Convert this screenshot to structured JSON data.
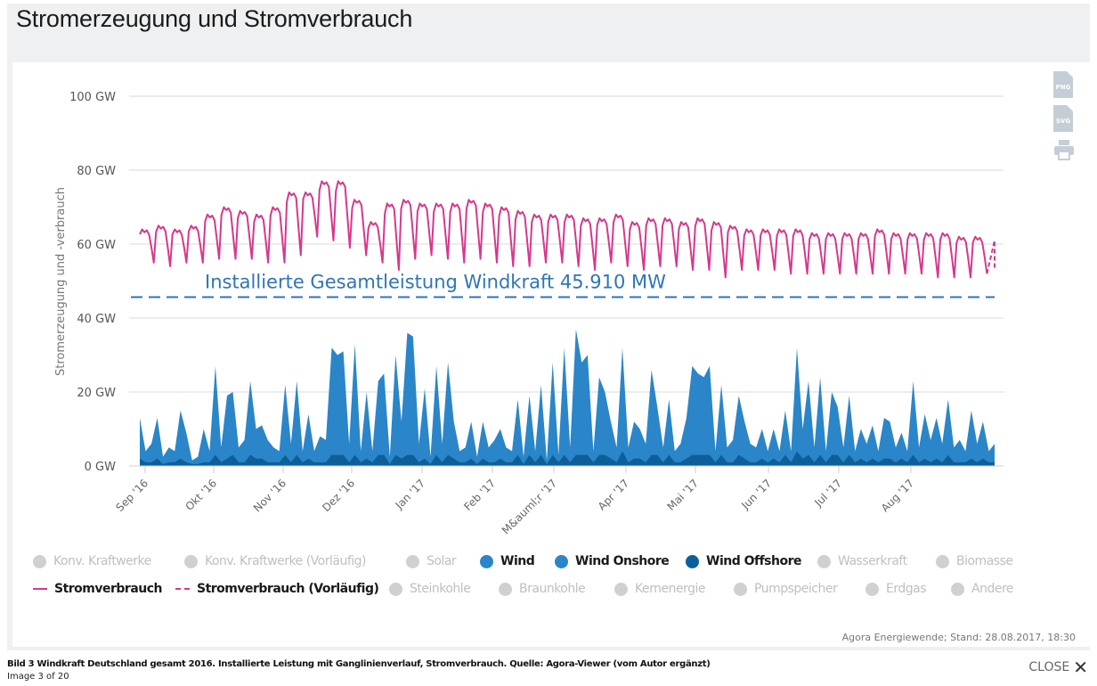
{
  "header": {
    "title": "Stromerzeugung und Stromverbrauch"
  },
  "tools": [
    {
      "name": "png-export-icon",
      "label": "PNG"
    },
    {
      "name": "svg-export-icon",
      "label": "SVG"
    },
    {
      "name": "print-icon",
      "label": ""
    }
  ],
  "colors": {
    "wind_onshore": "#2a86c8",
    "wind_offshore": "#0d5f9a",
    "stromverbrauch": "#d6388c",
    "annotation": "#2e75b6",
    "inactive": "#d0d0d0"
  },
  "chart_data": {
    "type": "area",
    "title": "Stromerzeugung und Stromverbrauch",
    "ylabel": "Stromerzeugung und -verbrauch",
    "xlabel": "",
    "ylim": [
      0,
      100
    ],
    "yticks": [
      "0 GW",
      "20 GW",
      "40 GW",
      "60 GW",
      "80 GW",
      "100 GW"
    ],
    "ytick_values": [
      0,
      20,
      40,
      60,
      80,
      100
    ],
    "grid": true,
    "x_range": [
      "2016-09-01",
      "2017-08-28"
    ],
    "xticks": [
      "Sep '16",
      "Okt '16",
      "Nov '16",
      "Dez '16",
      "Jan '17",
      "Feb '17",
      "M&auml;r '17",
      "Apr '17",
      "Mai '17",
      "Jun '17",
      "Jul '17",
      "Aug '17"
    ],
    "annotation": {
      "text": "Installierte Gesamtleistung Windkraft 45.910 MW",
      "value_gw": 45.91,
      "style": "dashed"
    },
    "x_unit": "days since 2016-09-01 (approx. sampled)",
    "series": [
      {
        "name": "Stromverbrauch",
        "type": "line",
        "unit": "GW",
        "weekly_high": [
          64,
          65,
          64,
          65,
          68,
          70,
          69,
          68,
          70,
          74,
          74,
          77,
          77,
          72,
          66,
          71,
          72,
          71,
          71,
          71,
          72,
          71,
          70,
          69,
          68,
          68,
          68,
          67,
          67,
          68,
          66,
          67,
          67,
          66,
          67,
          66,
          65,
          64,
          64,
          64,
          64,
          63,
          63,
          63,
          63,
          64,
          63,
          63,
          63,
          63,
          62,
          62
        ],
        "weekly_low": [
          55,
          54,
          55,
          55,
          56,
          56,
          56,
          55,
          55,
          57,
          62,
          61,
          59,
          57,
          55,
          53,
          56,
          57,
          56,
          55,
          56,
          55,
          54,
          54,
          55,
          55,
          54,
          53,
          55,
          54,
          53,
          54,
          54,
          53,
          53,
          51,
          53,
          53,
          53,
          52,
          52,
          52,
          52,
          52,
          52,
          52,
          52,
          52,
          51,
          51,
          51,
          52
        ]
      },
      {
        "name": "Wind Onshore",
        "type": "area",
        "unit": "GW",
        "values": [
          11,
          3,
          5,
          11,
          2,
          4,
          3,
          13,
          8,
          1,
          2,
          9,
          3,
          24,
          4,
          17,
          17,
          4,
          6,
          20,
          8,
          9,
          6,
          4,
          3,
          19,
          5,
          20,
          3,
          12,
          3,
          7,
          6,
          29,
          27,
          28,
          5,
          30,
          3,
          18,
          3,
          20,
          22,
          2,
          27,
          10,
          33,
          32,
          5,
          19,
          2,
          24,
          5,
          25,
          10,
          3,
          4,
          10,
          2,
          10,
          4,
          6,
          8,
          4,
          3,
          15,
          2,
          16,
          3,
          19,
          1,
          25,
          2,
          29,
          4,
          34,
          25,
          27,
          3,
          21,
          17,
          10,
          4,
          28,
          4,
          10,
          8,
          5,
          23,
          13,
          4,
          15,
          3,
          5,
          11,
          24,
          22,
          21,
          24,
          3,
          19,
          4,
          6,
          16,
          10,
          5,
          4,
          8,
          3,
          8,
          3,
          12,
          3,
          28,
          8,
          20,
          4,
          21,
          3,
          17,
          13,
          4,
          16,
          3,
          8,
          5,
          9,
          3,
          11,
          10,
          4,
          7,
          3,
          20,
          4,
          12,
          6,
          11,
          5,
          15,
          4,
          6,
          3,
          13,
          5,
          10,
          3,
          5
        ]
      },
      {
        "name": "Wind Offshore",
        "type": "area",
        "unit": "GW",
        "values": [
          2,
          1,
          1,
          2,
          0.5,
          1,
          1,
          2,
          1,
          0.5,
          0.5,
          1,
          1,
          3,
          1,
          2,
          3,
          1,
          1,
          3,
          2,
          2,
          1,
          1,
          1,
          3,
          1,
          3,
          1,
          2,
          1,
          1,
          1,
          3,
          3,
          3,
          1,
          3,
          1,
          2,
          1,
          3,
          3,
          0.5,
          3,
          2,
          3,
          3,
          1,
          2,
          0.5,
          3,
          1,
          3,
          2,
          1,
          1,
          2,
          0.5,
          2,
          1,
          1,
          2,
          1,
          1,
          3,
          0.5,
          3,
          1,
          3,
          0.5,
          3,
          1,
          3,
          1,
          3,
          3,
          3,
          1,
          3,
          3,
          2,
          1,
          4,
          1,
          2,
          2,
          1,
          3,
          3,
          1,
          3,
          1,
          1,
          2,
          3,
          3,
          3,
          3,
          1,
          3,
          1,
          1,
          3,
          2,
          1,
          1,
          2,
          1,
          2,
          1,
          3,
          1,
          4,
          2,
          3,
          1,
          3,
          1,
          3,
          3,
          1,
          3,
          1,
          2,
          1,
          2,
          1,
          2,
          2,
          1,
          2,
          1,
          3,
          1,
          2,
          1,
          2,
          1,
          3,
          1,
          1,
          1,
          2,
          1,
          2,
          1,
          1
        ]
      }
    ],
    "legend_position": "bottom",
    "legend": [
      {
        "label": "Konv. Kraftwerke",
        "active": false,
        "marker": "dot"
      },
      {
        "label": "Konv. Kraftwerke (Vorläufig)",
        "active": false,
        "marker": "dot"
      },
      {
        "label": "Solar",
        "active": false,
        "marker": "dot"
      },
      {
        "label": "Wind",
        "active": true,
        "marker": "dot",
        "color": "#2a86c8"
      },
      {
        "label": "Wind Onshore",
        "active": true,
        "marker": "dot",
        "color": "#2a86c8"
      },
      {
        "label": "Wind Offshore",
        "active": true,
        "marker": "dot",
        "color": "#0d5f9a"
      },
      {
        "label": "Wasserkraft",
        "active": false,
        "marker": "dot"
      },
      {
        "label": "Biomasse",
        "active": false,
        "marker": "dot"
      },
      {
        "label": "Stromverbrauch",
        "active": true,
        "marker": "line",
        "color": "#d6388c"
      },
      {
        "label": "Stromverbrauch (Vorläufig)",
        "active": true,
        "marker": "dashed",
        "color": "#d6388c"
      },
      {
        "label": "Steinkohle",
        "active": false,
        "marker": "dot"
      },
      {
        "label": "Braunkohle",
        "active": false,
        "marker": "dot"
      },
      {
        "label": "Kernenergie",
        "active": false,
        "marker": "dot"
      },
      {
        "label": "Pumpspeicher",
        "active": false,
        "marker": "dot"
      },
      {
        "label": "Erdgas",
        "active": false,
        "marker": "dot"
      },
      {
        "label": "Andere",
        "active": false,
        "marker": "dot"
      }
    ]
  },
  "source": "Agora Energiewende; Stand: 28.08.2017, 18:30",
  "footer": {
    "caption": "Bild 3 Windkraft Deutschland gesamt 2016. Installierte Leistung mit Ganglinienverlauf, Stromverbrauch. Quelle: Agora-Viewer (vom Autor ergänzt)",
    "counter": "Image 3 of 20",
    "close_label": "CLOSE"
  }
}
